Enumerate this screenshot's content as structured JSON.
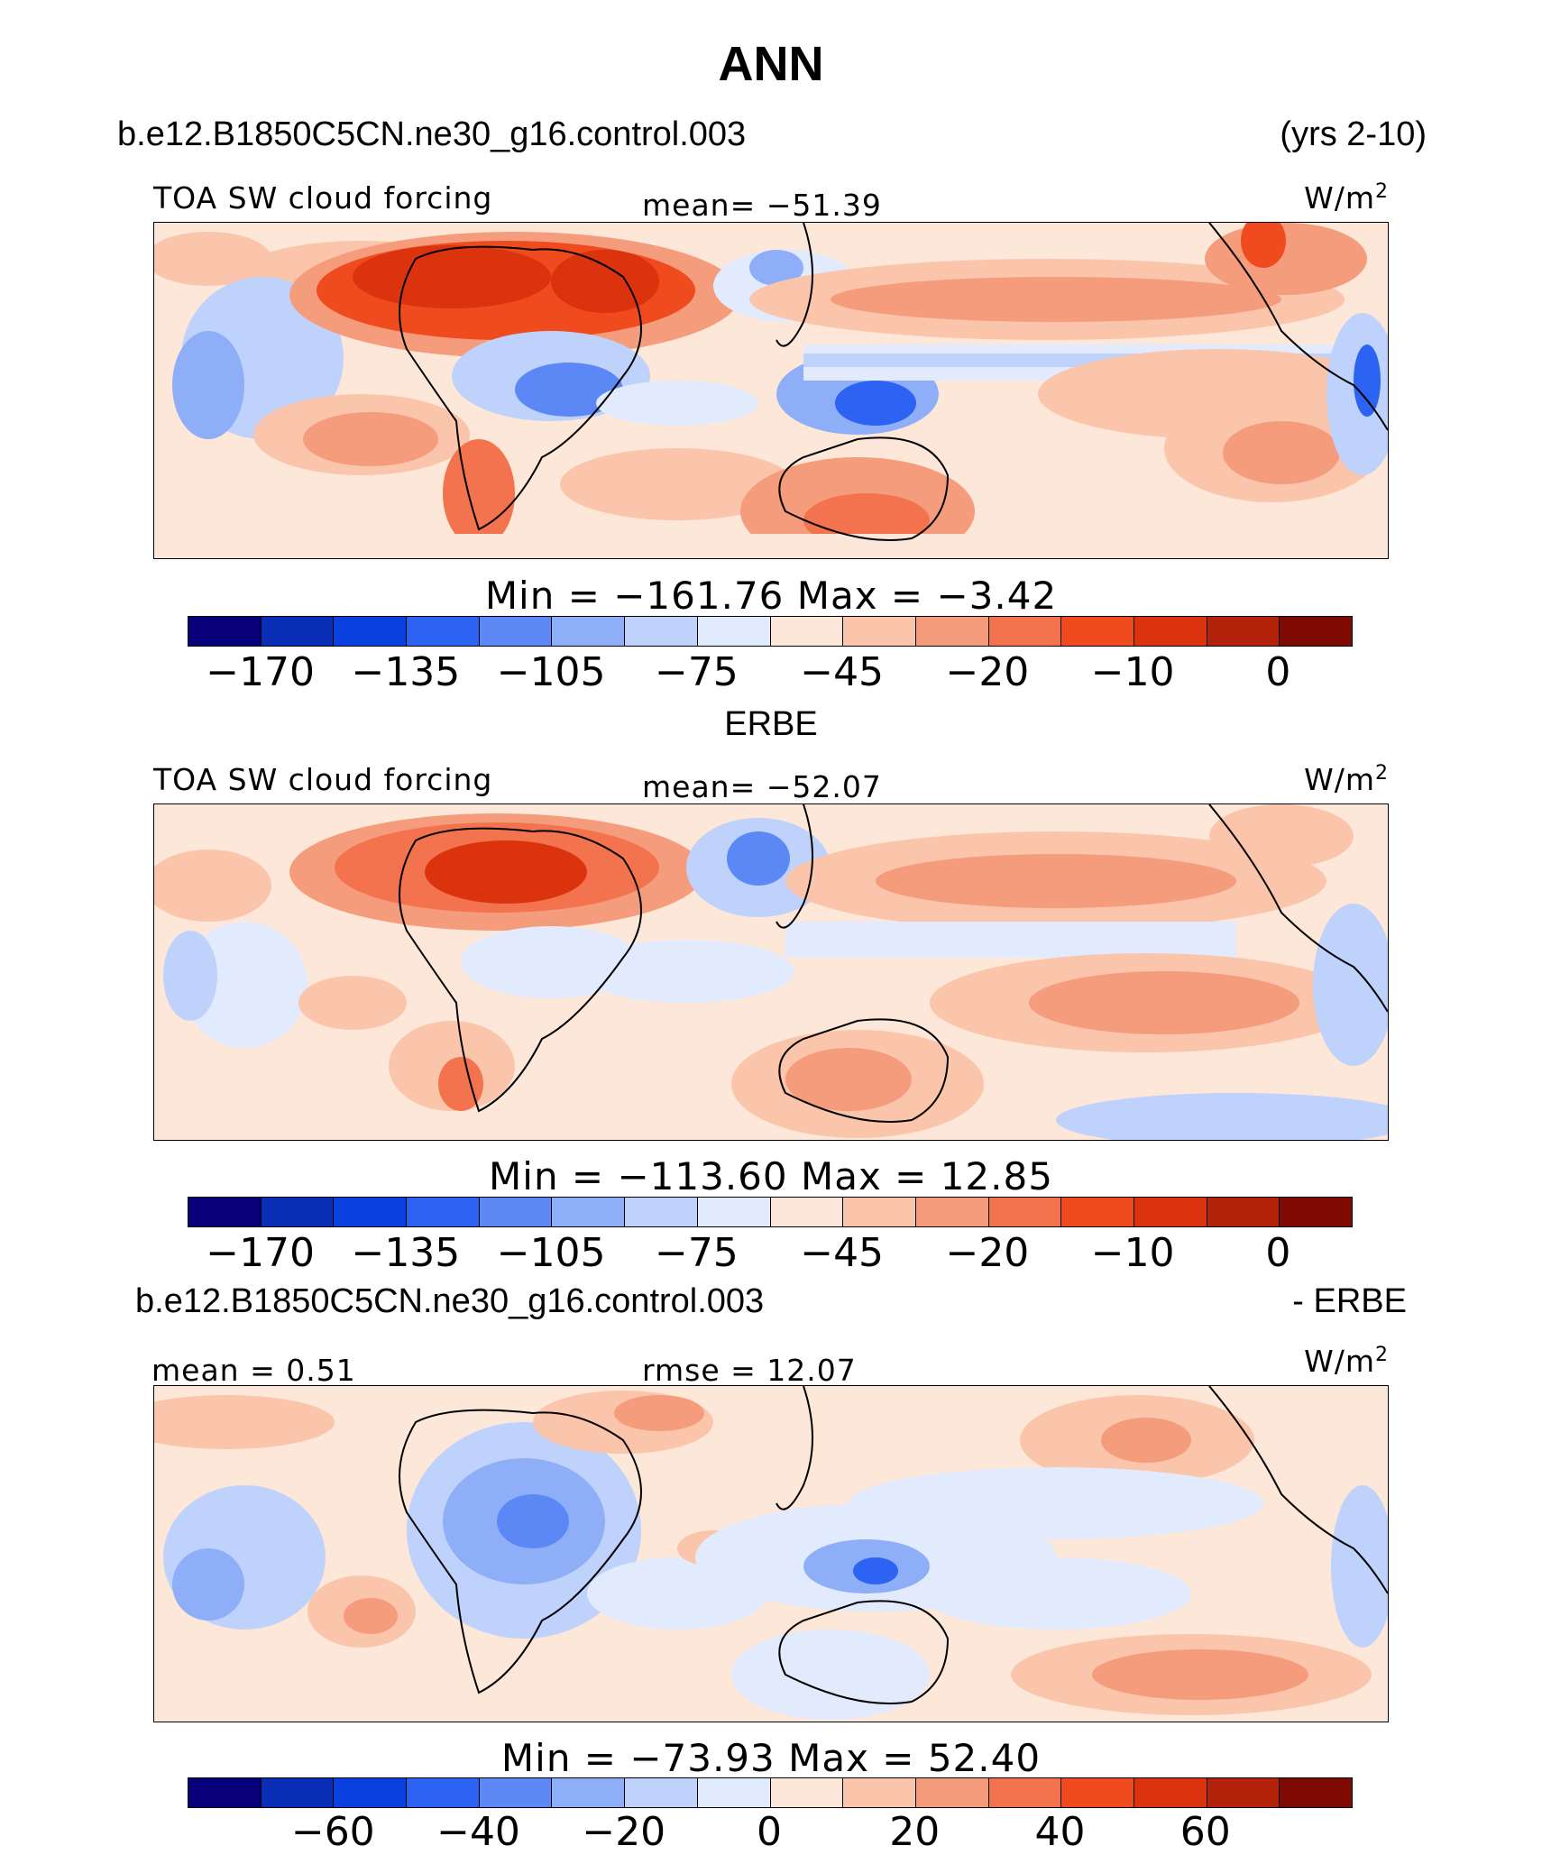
{
  "figure": {
    "title": "ANN",
    "case_name": "b.e12.B1850C5CN.ne30_g16.control.003",
    "years": "(yrs 2-10)",
    "diff_case_name": "b.e12.B1850C5CN.ne30_g16.control.003",
    "diff_suffix": "- ERBE",
    "obs_title": "ERBE"
  },
  "panels": [
    {
      "variable": "TOA SW cloud forcing",
      "stat_text": "mean=  −51.39",
      "units": "W/m",
      "units_exp": "2",
      "minmax": "Min  =  −161.76  Max  =   −3.42"
    },
    {
      "variable": "TOA SW cloud forcing",
      "stat_text": "mean=  −52.07",
      "units": "W/m",
      "units_exp": "2",
      "minmax": "Min  =  −113.60  Max  =   12.85"
    },
    {
      "left_stat": "mean  =    0.51",
      "stat_text": "rmse  =   12.07",
      "units": "W/m",
      "units_exp": "2",
      "minmax": "Min  =  −73.93  Max  =   52.40"
    }
  ],
  "colorbars": [
    {
      "colors": [
        "#08007a",
        "#0a2db5",
        "#0a40e0",
        "#2c63f2",
        "#5b88f5",
        "#8eaef8",
        "#bfd2fb",
        "#e1ebfd",
        "#fde7d8",
        "#fbc5ac",
        "#f59c7c",
        "#f2734d",
        "#f04b1f",
        "#db330d",
        "#b3220a",
        "#7f0a04"
      ],
      "ticks": [
        "−170",
        "−135",
        "−105",
        "−75",
        "−45",
        "−20",
        "−10",
        "0"
      ]
    },
    {
      "colors": [
        "#08007a",
        "#0a2db5",
        "#0a40e0",
        "#2c63f2",
        "#5b88f5",
        "#8eaef8",
        "#bfd2fb",
        "#e1ebfd",
        "#fde7d8",
        "#fbc5ac",
        "#f59c7c",
        "#f2734d",
        "#f04b1f",
        "#db330d",
        "#b3220a",
        "#7f0a04"
      ],
      "ticks": [
        "−170",
        "−135",
        "−105",
        "−75",
        "−45",
        "−20",
        "−10",
        "0"
      ]
    },
    {
      "colors": [
        "#08007a",
        "#0a2db5",
        "#0a40e0",
        "#2c63f2",
        "#5b88f5",
        "#8eaef8",
        "#bfd2fb",
        "#e1ebfd",
        "#fde7d8",
        "#fbc5ac",
        "#f59c7c",
        "#f2734d",
        "#f04b1f",
        "#db330d",
        "#b3220a",
        "#7f0a04"
      ],
      "ticks": [
        "−60",
        "−40",
        "−20",
        "0",
        "20",
        "40",
        "60"
      ]
    }
  ]
}
